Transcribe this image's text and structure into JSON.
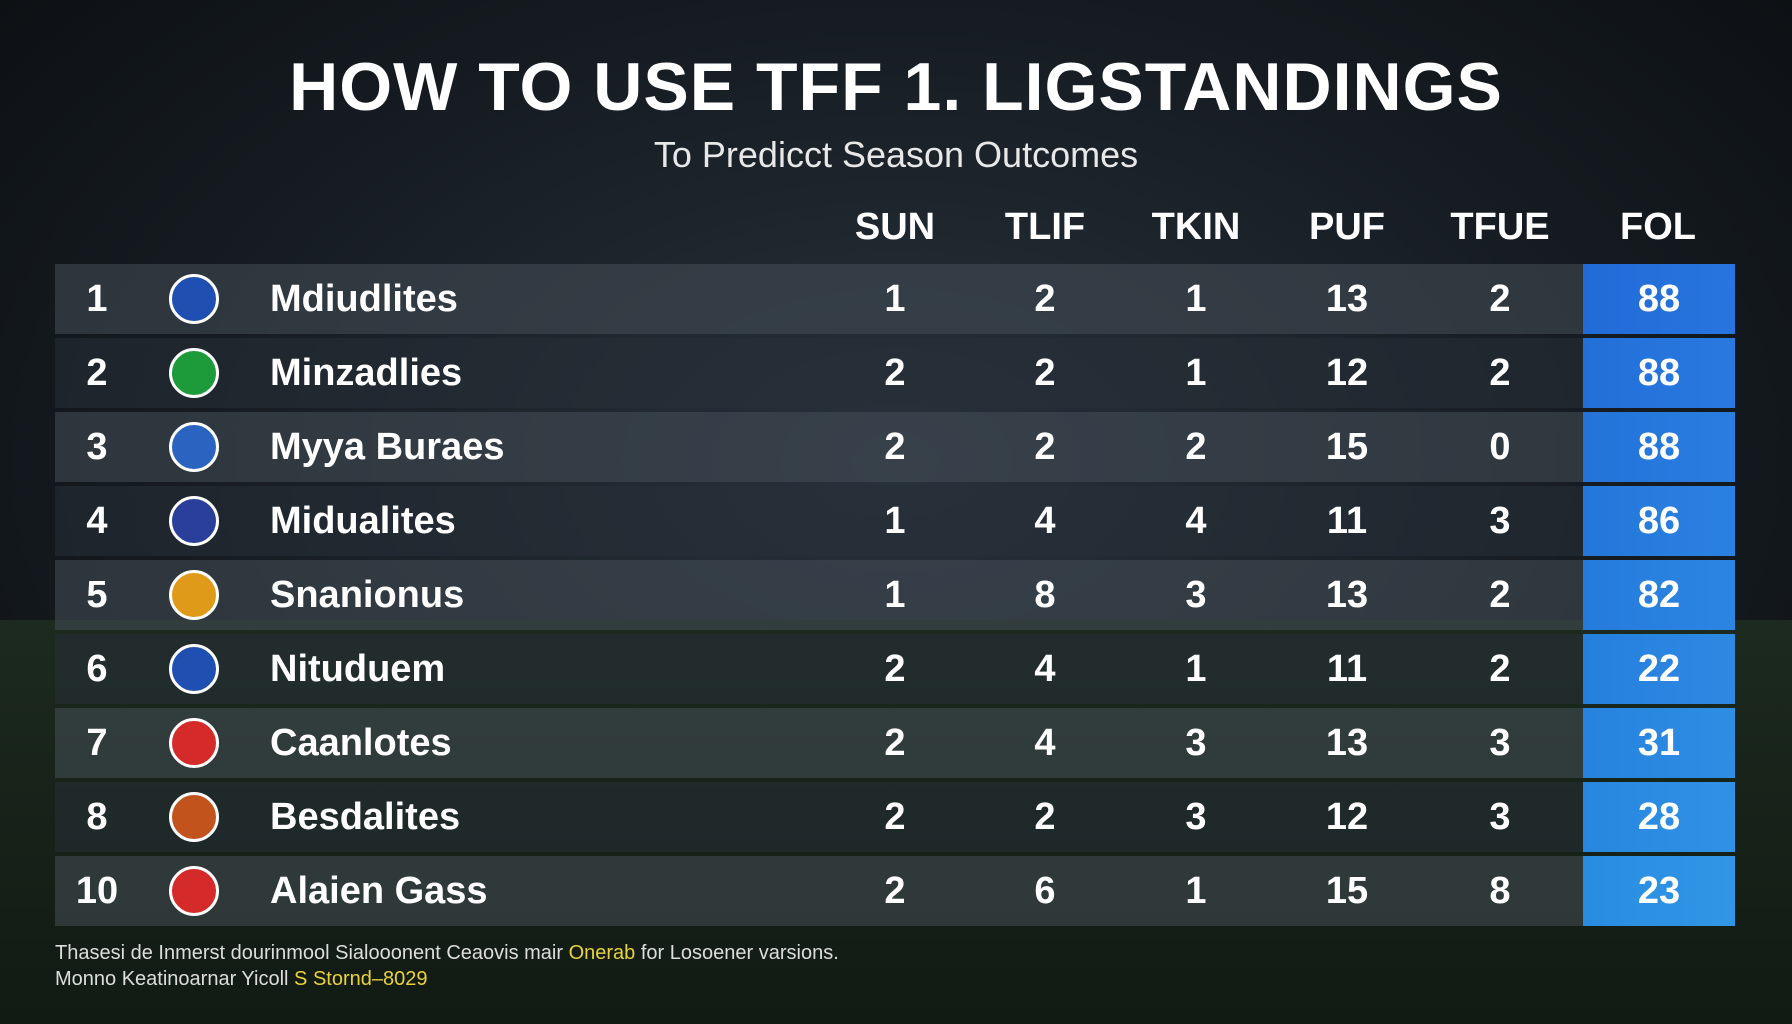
{
  "header": {
    "title": "HOW TO USE TFF 1. LIGSTANDINGS",
    "subtitle": "To Predicct Season Outcomes"
  },
  "table": {
    "columns": [
      "SUN",
      "TLIF",
      "TKIN",
      "PUF",
      "TFUE",
      "FOL"
    ],
    "rows": [
      {
        "rank": 1,
        "team": "Mdiudlites",
        "values": [
          1,
          2,
          1,
          13,
          2,
          88
        ]
      },
      {
        "rank": 2,
        "team": "Minzadlies",
        "values": [
          2,
          2,
          1,
          12,
          2,
          88
        ]
      },
      {
        "rank": 3,
        "team": "Myya Buraes",
        "values": [
          2,
          2,
          2,
          15,
          0,
          88
        ]
      },
      {
        "rank": 4,
        "team": "Midualites",
        "values": [
          1,
          4,
          4,
          11,
          3,
          86
        ]
      },
      {
        "rank": 5,
        "team": "Snanionus",
        "values": [
          1,
          8,
          3,
          13,
          2,
          82
        ]
      },
      {
        "rank": 6,
        "team": "Nituduem",
        "values": [
          2,
          4,
          1,
          11,
          2,
          22
        ]
      },
      {
        "rank": 7,
        "team": "Caanlotes",
        "values": [
          2,
          4,
          3,
          13,
          3,
          31
        ]
      },
      {
        "rank": 8,
        "team": "Besdalites",
        "values": [
          2,
          2,
          3,
          12,
          3,
          28
        ]
      },
      {
        "rank": 10,
        "team": "Alaien Gass",
        "values": [
          2,
          6,
          1,
          15,
          8,
          23
        ]
      }
    ]
  },
  "footer": {
    "line1": [
      "Thasesi de Inmerst dourinmool Sialooonent Ceaovis mair",
      "Onerab",
      "for Losoener varsions."
    ],
    "line2": [
      "Monno Keatinoarnar Yicoll",
      "S Stornd–8029"
    ]
  }
}
